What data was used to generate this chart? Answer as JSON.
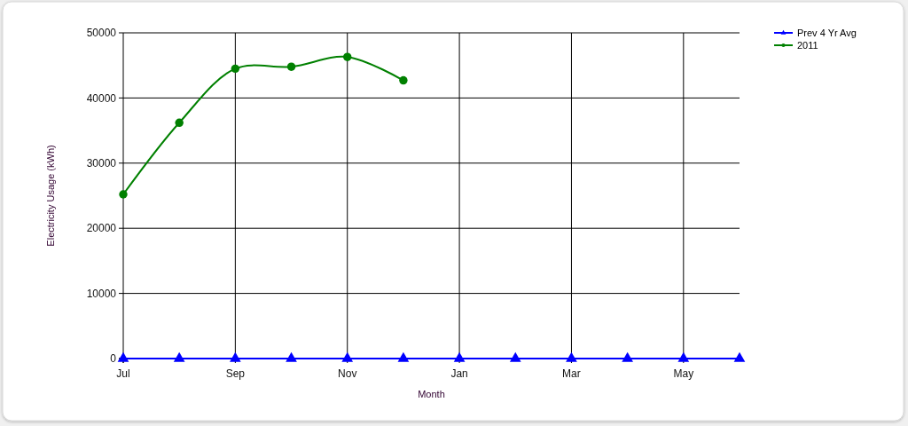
{
  "chart_data": {
    "type": "line",
    "categories": [
      "Jul",
      null,
      "Sep",
      null,
      "Nov",
      null,
      "Jan",
      null,
      "Mar",
      null,
      "May",
      null
    ],
    "xlabel": "Month",
    "ylabel": "Electricity Usage (kWh)",
    "ylim": [
      0,
      50000
    ],
    "yticks": [
      0,
      10000,
      20000,
      30000,
      40000,
      50000
    ],
    "grid": true,
    "legend": "top right",
    "series": [
      {
        "name": "Prev 4 Yr Avg",
        "color": "#0000ff",
        "marker": "triangle",
        "values": [
          0,
          0,
          0,
          0,
          0,
          0,
          0,
          0,
          0,
          0,
          0,
          0
        ]
      },
      {
        "name": "2011",
        "color": "#008000",
        "marker": "circle",
        "values": [
          25200,
          36200,
          44500,
          44800,
          46300,
          42700,
          null,
          null,
          null,
          null,
          null,
          null
        ]
      }
    ]
  }
}
